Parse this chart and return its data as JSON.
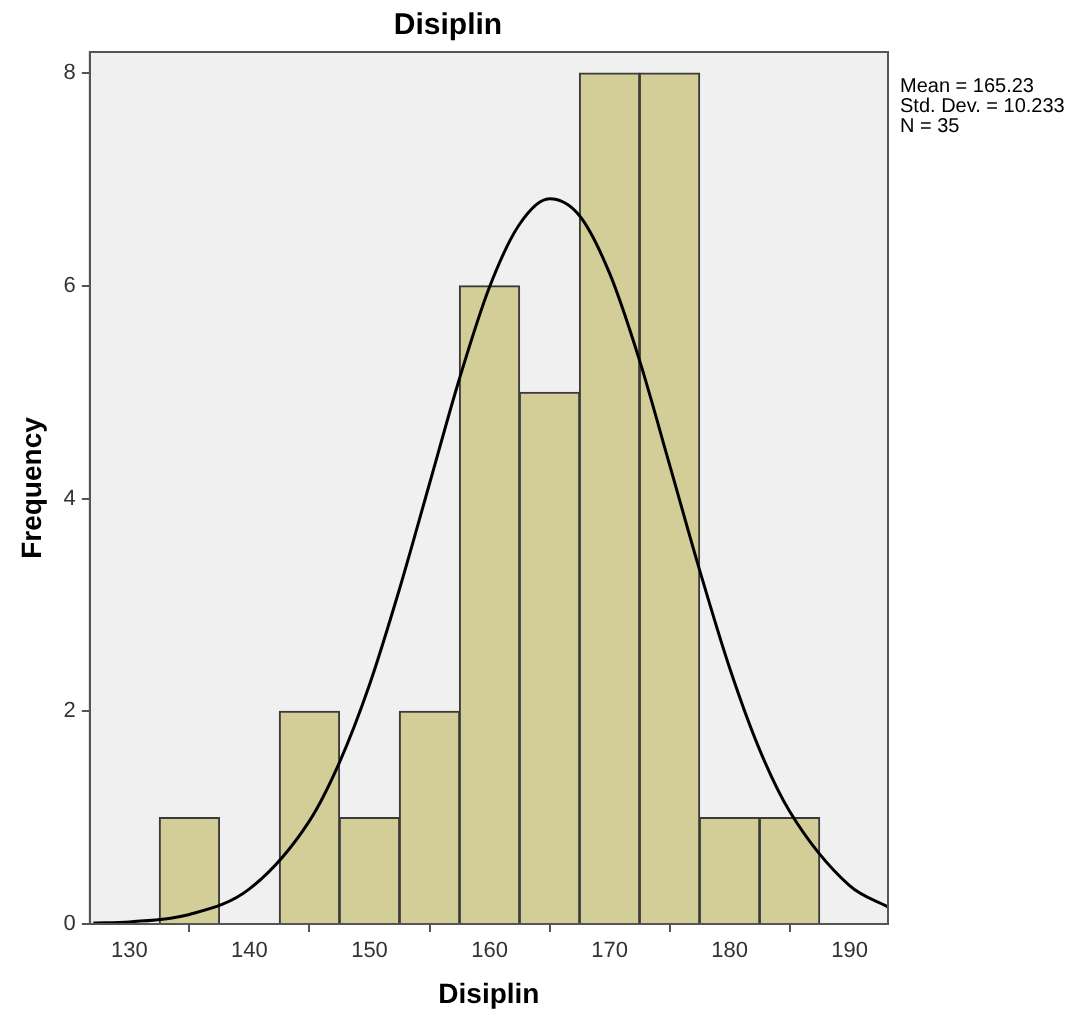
{
  "chart_data": {
    "type": "histogram",
    "title": "Disiplin",
    "xlabel": "Disiplin",
    "ylabel": "Frequency",
    "bins": [
      132.5,
      137.5,
      142.5,
      147.5,
      152.5,
      157.5,
      162.5,
      167.5,
      172.5,
      177.5,
      182.5,
      187.5
    ],
    "values": [
      1,
      0,
      2,
      1,
      2,
      6,
      5,
      8,
      8,
      1,
      1
    ],
    "color": "#d3ce97",
    "series": [
      {
        "type": "line",
        "color": "#000000",
        "x": [
          127,
          130,
          135,
          140,
          145,
          147.5,
          150,
          152.5,
          155,
          157.5,
          160,
          162.5,
          165,
          167.5,
          170,
          172.5,
          175,
          177.5,
          180,
          182.5,
          185,
          190,
          193.2
        ],
        "values": [
          0.01,
          0.02,
          0.09,
          0.33,
          0.97,
          1.52,
          2.25,
          3.15,
          4.14,
          5.13,
          5.99,
          6.58,
          6.82,
          6.66,
          6.12,
          5.3,
          4.32,
          3.33,
          2.41,
          1.64,
          1.06,
          0.36,
          0.16
        ]
      }
    ],
    "xlim": [
      126.7,
      193.2
    ],
    "xticks": [
      130,
      140,
      150,
      160,
      170,
      180,
      190
    ],
    "ylim": [
      0,
      8.2
    ],
    "yticks": [
      0,
      2,
      4,
      6,
      8
    ],
    "grid": false,
    "legend": false,
    "marker": "none",
    "line_style": "solid",
    "annotations": [
      "Mean = 165.23",
      "Std. Dev. = 10.233",
      "N = 35"
    ]
  }
}
